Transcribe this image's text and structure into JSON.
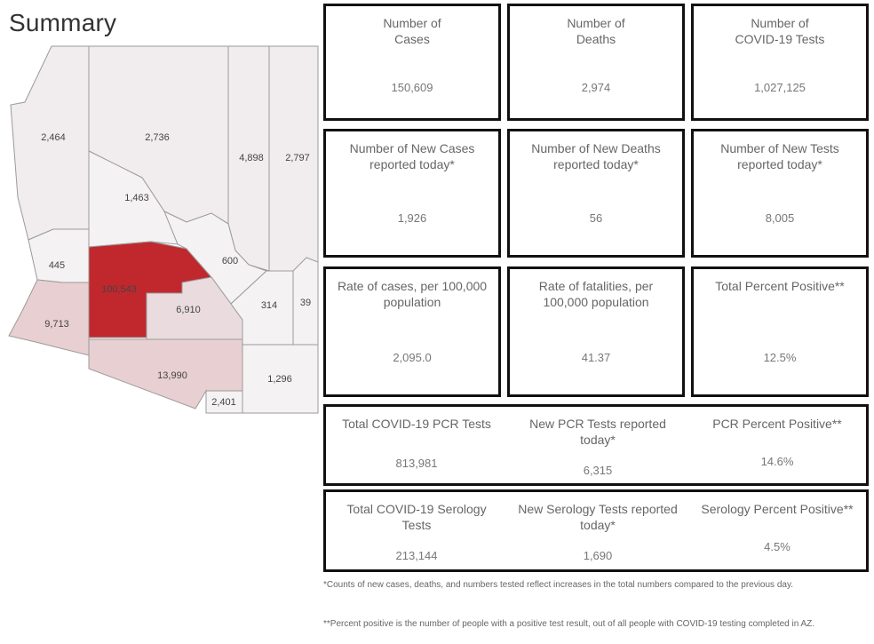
{
  "page": {
    "title": "Summary"
  },
  "map": {
    "colors": {
      "high": "#c0282d",
      "mid_1": "#e8cfd1",
      "mid_2": "#eadcde",
      "low": "#f1ecee",
      "lowest": "#f5f2f3"
    },
    "counties": [
      {
        "name": "mohave",
        "value": "2,464"
      },
      {
        "name": "coconino",
        "value": "2,736"
      },
      {
        "name": "yavapai",
        "value": "1,463"
      },
      {
        "name": "navajo",
        "value": "4,898"
      },
      {
        "name": "apache",
        "value": "2,797"
      },
      {
        "name": "la-paz",
        "value": "445"
      },
      {
        "name": "maricopa",
        "value": "100,543"
      },
      {
        "name": "gila",
        "value": "600"
      },
      {
        "name": "yuma",
        "value": "9,713"
      },
      {
        "name": "pinal",
        "value": "6,910"
      },
      {
        "name": "graham",
        "value": "314"
      },
      {
        "name": "greenlee",
        "value": "39"
      },
      {
        "name": "pima",
        "value": "13,990"
      },
      {
        "name": "santa-cruz",
        "value": "2,401"
      },
      {
        "name": "cochise",
        "value": "1,296"
      }
    ]
  },
  "metrics": [
    {
      "label": "Number of\nCases",
      "value": "150,609"
    },
    {
      "label": "Number of\nDeaths",
      "value": "2,974"
    },
    {
      "label": "Number of\nCOVID-19 Tests",
      "value": "1,027,125"
    },
    {
      "label": "Number of New Cases\nreported today*",
      "value": "1,926"
    },
    {
      "label": "Number of New Deaths\nreported today*",
      "value": "56"
    },
    {
      "label": "Number of New Tests\nreported today*",
      "value": "8,005"
    },
    {
      "label": "Rate of cases, per 100,000\npopulation",
      "value": "2,095.0"
    },
    {
      "label": "Rate of fatalities, per\n100,000 population",
      "value": "41.37"
    },
    {
      "label": "Total Percent Positive**",
      "value": "12.5%"
    }
  ],
  "pcr": [
    {
      "label": "Total COVID-19 PCR Tests",
      "value": "813,981"
    },
    {
      "label": "New PCR Tests reported\ntoday*",
      "value": "6,315"
    },
    {
      "label": "PCR Percent Positive**",
      "value": "14.6%"
    }
  ],
  "serology": [
    {
      "label": "Total COVID-19 Serology\nTests",
      "value": "213,144"
    },
    {
      "label": "New Serology Tests reported\ntoday*",
      "value": "1,690"
    },
    {
      "label": "Serology Percent Positive**",
      "value": "4.5%"
    }
  ],
  "footnotes": [
    "*Counts of new cases, deaths, and numbers tested reflect increases in the total numbers compared to the previous day.",
    "**Percent positive is the number of people with a positive test result, out of all people with COVID-19 testing completed in AZ."
  ]
}
